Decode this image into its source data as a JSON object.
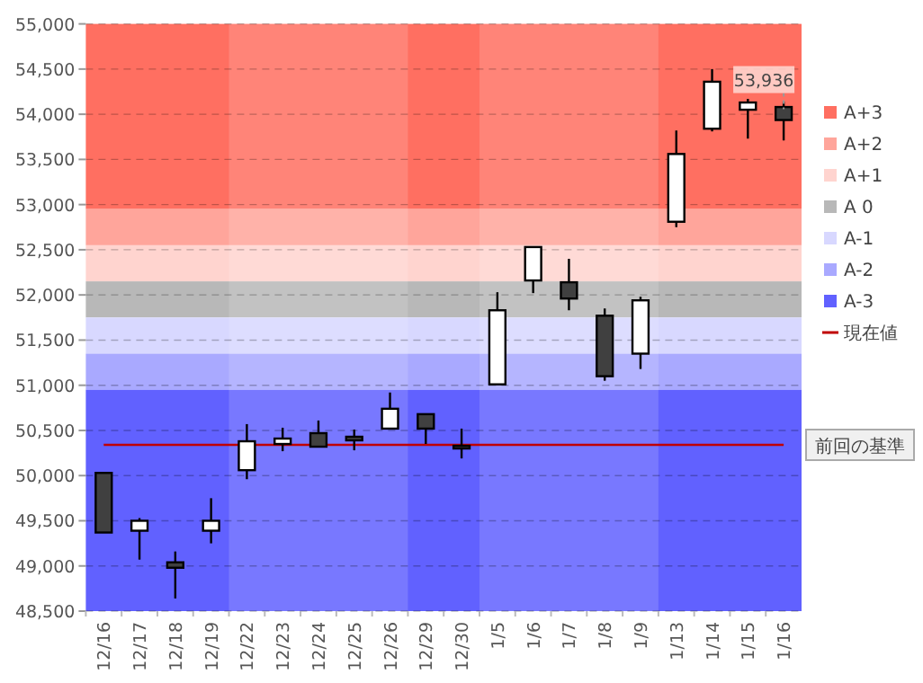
{
  "chart_data": {
    "type": "candlestick",
    "categories": [
      "12/16",
      "12/17",
      "12/18",
      "12/19",
      "12/22",
      "12/23",
      "12/24",
      "12/25",
      "12/26",
      "12/29",
      "12/30",
      "1/5",
      "1/6",
      "1/7",
      "1/8",
      "1/9",
      "1/13",
      "1/14",
      "1/15",
      "1/16"
    ],
    "ohlc": [
      [
        50030,
        50030,
        49370,
        49370
      ],
      [
        49390,
        49530,
        49070,
        49500
      ],
      [
        49040,
        49160,
        48640,
        48980
      ],
      [
        49390,
        49750,
        49250,
        49500
      ],
      [
        50060,
        50570,
        49960,
        50380
      ],
      [
        50350,
        50530,
        50270,
        50410
      ],
      [
        50470,
        50610,
        50320,
        50320
      ],
      [
        50430,
        50510,
        50280,
        50390
      ],
      [
        50520,
        50920,
        50520,
        50740
      ],
      [
        50680,
        50680,
        50350,
        50520
      ],
      [
        50330,
        50520,
        50190,
        50310
      ],
      [
        51010,
        52030,
        51010,
        51830
      ],
      [
        52160,
        52530,
        52020,
        52530
      ],
      [
        52140,
        52400,
        51830,
        51960
      ],
      [
        51770,
        51850,
        51050,
        51100
      ],
      [
        51350,
        51980,
        51180,
        51940
      ],
      [
        52810,
        53820,
        52750,
        53560
      ],
      [
        53840,
        54500,
        53810,
        54360
      ],
      [
        54050,
        54170,
        53730,
        54130
      ],
      [
        54080,
        54140,
        53710,
        53936
      ]
    ],
    "ylim": [
      48500,
      55000
    ],
    "yticks": [
      {
        "value": 48500,
        "label": "48,500"
      },
      {
        "value": 49000,
        "label": "49,000"
      },
      {
        "value": 49500,
        "label": "49,500"
      },
      {
        "value": 50000,
        "label": "50,000"
      },
      {
        "value": 50500,
        "label": "50,500"
      },
      {
        "value": 51000,
        "label": "51,000"
      },
      {
        "value": 51500,
        "label": "51,500"
      },
      {
        "value": 52000,
        "label": "52,000"
      },
      {
        "value": 52500,
        "label": "52,500"
      },
      {
        "value": 53000,
        "label": "53,000"
      },
      {
        "value": 53500,
        "label": "53,500"
      },
      {
        "value": 54000,
        "label": "54,000"
      },
      {
        "value": 54500,
        "label": "54,500"
      },
      {
        "value": 55000,
        "label": "55,000"
      }
    ],
    "grid": "y",
    "bands": [
      {
        "axis": "y",
        "from": 52950,
        "to": 55000,
        "label": "A+3",
        "color": "#ff6f61"
      },
      {
        "axis": "y",
        "from": 52550,
        "to": 52950,
        "label": "A+2",
        "color": "#ffa59b"
      },
      {
        "axis": "y",
        "from": 52150,
        "to": 52550,
        "label": "A+1",
        "color": "#ffd4cf"
      },
      {
        "axis": "y",
        "from": 51750,
        "to": 52150,
        "label": "A 0",
        "color": "#b8b8b8"
      },
      {
        "axis": "y",
        "from": 51350,
        "to": 51750,
        "label": "A-1",
        "color": "#d8d8ff"
      },
      {
        "axis": "y",
        "from": 50950,
        "to": 51350,
        "label": "A-2",
        "color": "#a9a9ff"
      },
      {
        "axis": "y",
        "from": 48500,
        "to": 50950,
        "label": "A-3",
        "color": "#6161ff"
      },
      {
        "axis": "x",
        "from": "12/22",
        "to": "12/26",
        "color": "#ffffff"
      },
      {
        "axis": "x",
        "from": "1/5",
        "to": "1/9",
        "color": "#ffffff"
      }
    ],
    "ref_lines": [
      {
        "axis": "y",
        "value": 50340,
        "label": "現在値",
        "color": "#c00000"
      }
    ],
    "legend": "right",
    "annotations": [
      {
        "text": "53,936",
        "x": "1/16",
        "y": 53936
      },
      "前回の基準"
    ]
  }
}
